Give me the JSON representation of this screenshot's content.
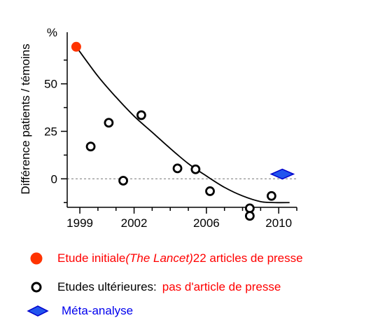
{
  "chart_data": {
    "type": "scatter",
    "xlim": [
      1998.3,
      2011.0
    ],
    "ylim": [
      -15,
      72
    ],
    "x_ticks": [
      1999,
      2002,
      2006,
      2010
    ],
    "x_minor_ticks": [
      2000,
      2001,
      2003,
      2004,
      2005,
      2007,
      2008,
      2009,
      2011
    ],
    "y_ticks": [
      0,
      25,
      50
    ],
    "y_unit_label": "%",
    "ylabel": "Différence patients / témoins",
    "reference_line_y": 0,
    "series": [
      {
        "name": "Etude initiale (The Lancet) 22 articles de presse",
        "marker": "filled-circle",
        "color": "#ff3300",
        "points": [
          [
            1998.8,
            69.5
          ]
        ]
      },
      {
        "name": "Etudes ultérieures: pas d'article de presse",
        "marker": "open-circle",
        "color": "#000000",
        "points": [
          [
            1999.6,
            17
          ],
          [
            2000.6,
            29.5
          ],
          [
            2001.4,
            -1
          ],
          [
            2002.4,
            33.5
          ],
          [
            2004.4,
            5.5
          ],
          [
            2005.4,
            5
          ],
          [
            2006.2,
            -6.5
          ],
          [
            2008.4,
            -15.5
          ],
          [
            2008.4,
            -19.5
          ],
          [
            2009.6,
            -9
          ]
        ]
      },
      {
        "name": "Méta-analyse",
        "marker": "diamond",
        "color": "#2255ee",
        "points": [
          [
            2010.2,
            2.5
          ]
        ]
      }
    ],
    "trend_curve": {
      "color": "#000000",
      "points": [
        [
          1998.8,
          69.5
        ],
        [
          2000.0,
          54
        ],
        [
          2001.0,
          43
        ],
        [
          2002.0,
          33
        ],
        [
          2003.0,
          24.5
        ],
        [
          2004.0,
          16
        ],
        [
          2005.0,
          8
        ],
        [
          2006.0,
          1.5
        ],
        [
          2007.0,
          -4.5
        ],
        [
          2008.0,
          -9
        ],
        [
          2009.0,
          -12
        ],
        [
          2009.8,
          -12.5
        ],
        [
          2010.6,
          -12.5
        ]
      ]
    }
  },
  "legend": {
    "initial": {
      "pre": "Etude initiale ",
      "italic": "(The Lancet)",
      "post": " 22 articles de presse"
    },
    "later": {
      "black_text": "Etudes ultérieures:",
      "red_text": "pas d'article de presse"
    },
    "meta": {
      "text": "Méta-analyse"
    },
    "colors": {
      "red": "#ff0000",
      "blue": "#0000ee",
      "black": "#000000"
    }
  }
}
